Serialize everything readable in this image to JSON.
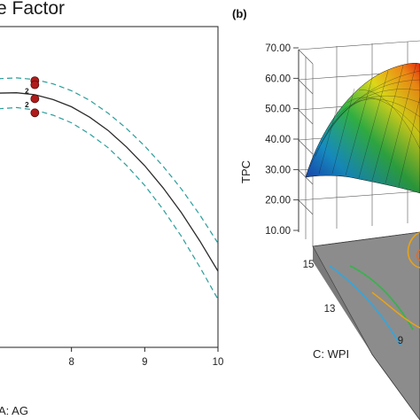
{
  "chart_data": [
    {
      "type": "scatter",
      "panel_label": "",
      "title": "e Factor",
      "xlabel": "A: AG",
      "ylabel": "",
      "x_ticks": [
        "8",
        "9",
        "10"
      ],
      "xlim": [
        7.0,
        10.0
      ],
      "ylim": [
        0,
        80
      ],
      "points": [
        {
          "x": 7.5,
          "y": 66.5
        },
        {
          "x": 7.5,
          "y": 65.5
        },
        {
          "x": 7.5,
          "y": 62.0
        },
        {
          "x": 7.5,
          "y": 58.5
        }
      ],
      "replicate_labels": [
        {
          "x": 7.5,
          "y": 64.0,
          "text": "2"
        },
        {
          "x": 7.5,
          "y": 60.5,
          "text": "2"
        }
      ],
      "series": [
        {
          "role": "fit",
          "x": [
            7.0,
            7.25,
            7.5,
            7.75,
            8.0,
            8.25,
            8.5,
            8.75,
            9.0,
            9.25,
            9.5,
            9.75,
            10.0
          ],
          "y": [
            63.4,
            63.5,
            63.0,
            61.8,
            60.0,
            57.4,
            54.1,
            50.0,
            45.3,
            39.8,
            33.6,
            26.6,
            19.0
          ]
        },
        {
          "role": "ci-upper",
          "x": [
            7.0,
            7.25,
            7.5,
            7.75,
            8.0,
            8.25,
            8.5,
            8.75,
            9.0,
            9.25,
            9.5,
            9.75,
            10.0
          ],
          "y": [
            67.0,
            67.2,
            66.8,
            65.7,
            64.0,
            61.6,
            58.4,
            54.6,
            50.2,
            45.2,
            39.5,
            33.1,
            26.0
          ]
        },
        {
          "role": "ci-lower",
          "x": [
            7.0,
            7.25,
            7.5,
            7.75,
            8.0,
            8.25,
            8.5,
            8.75,
            9.0,
            9.25,
            9.5,
            9.75,
            10.0
          ],
          "y": [
            59.5,
            59.8,
            59.2,
            57.9,
            56.0,
            53.2,
            49.8,
            45.4,
            40.4,
            34.4,
            27.7,
            20.1,
            12.0
          ]
        }
      ],
      "colors": {
        "fit": "#2b2b2b",
        "ci": "#2a9d9a",
        "points": "#b01c1c"
      }
    },
    {
      "type": "surface",
      "panel_label": "(b)",
      "zlabel": "TPC",
      "ylabel": "C: WPI",
      "z_ticks": [
        "10.00",
        "20.00",
        "30.00",
        "40.00",
        "50.00",
        "60.00",
        "70.00"
      ],
      "zlim": [
        10,
        70
      ],
      "y_ticks": [
        "15",
        "13",
        "9"
      ],
      "grid": true,
      "colors": {
        "contour_floor": "#8c8c8c",
        "contours": [
          "#2fa7e0",
          "#35b34a",
          "#e8a317",
          "#e86a1e"
        ]
      }
    }
  ]
}
